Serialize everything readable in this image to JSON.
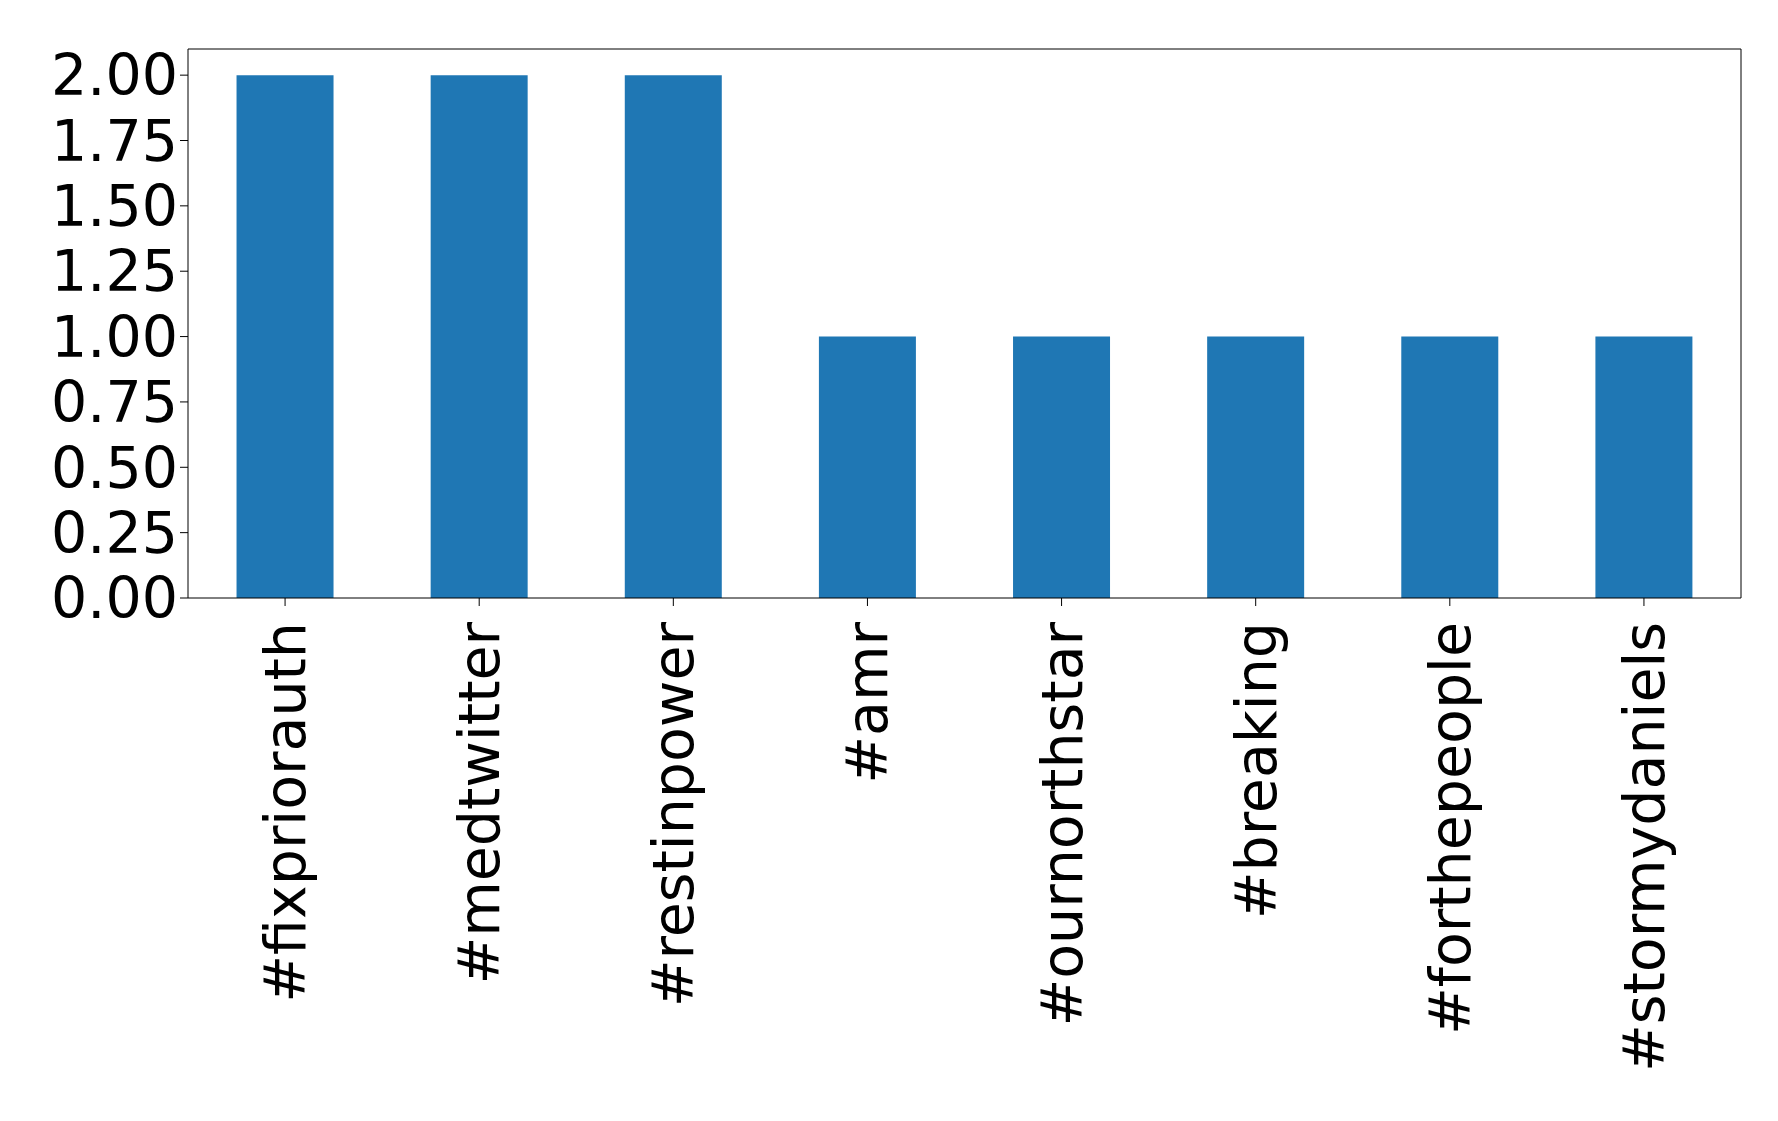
{
  "chart_data": {
    "type": "bar",
    "categories": [
      "#fixpriorauth",
      "#medtwitter",
      "#restinpower",
      "#amr",
      "#ournorthstar",
      "#breaking",
      "#forthepeople",
      "#stormydaniels"
    ],
    "values": [
      2,
      2,
      2,
      1,
      1,
      1,
      1,
      1
    ],
    "color": "#1f77b4",
    "ylim": [
      0,
      2.1
    ],
    "yticks": [
      {
        "value": 0,
        "label": "0.00"
      },
      {
        "value": 0.25,
        "label": "0.25"
      },
      {
        "value": 0.5,
        "label": "0.50"
      },
      {
        "value": 0.75,
        "label": "0.75"
      },
      {
        "value": 1,
        "label": "1.00"
      },
      {
        "value": 1.25,
        "label": "1.25"
      },
      {
        "value": 1.5,
        "label": "1.50"
      },
      {
        "value": 1.75,
        "label": "1.75"
      },
      {
        "value": 2,
        "label": "2.00"
      }
    ],
    "grid": false,
    "legend": false
  }
}
